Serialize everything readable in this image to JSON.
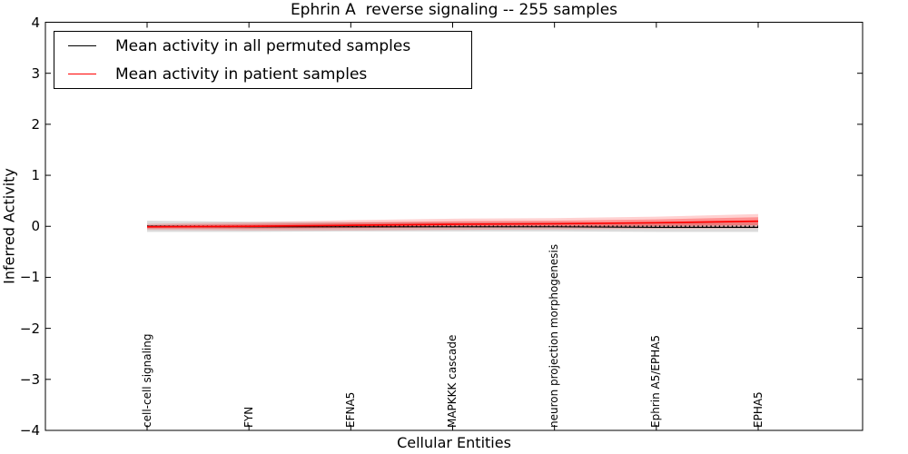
{
  "chart_data": {
    "type": "line",
    "title": "Ephrin A  reverse signaling -- 255 samples",
    "xlabel": "Cellular Entities",
    "ylabel": "Inferred Activity",
    "ylim": [
      -4,
      4
    ],
    "yticks": [
      "4",
      "3",
      "2",
      "1",
      "0",
      "−1",
      "−2",
      "−3",
      "−4"
    ],
    "categories": [
      "cell-cell signaling",
      "FYN",
      "EFNA5",
      "MAPKKK cascade",
      "neuron projection morphogenesis",
      "Ephrin A5/EPHA5",
      "EPHA5"
    ],
    "series": [
      {
        "name": "Mean activity in all permuted samples",
        "color": "#000000",
        "values": [
          0.0,
          -0.01,
          -0.01,
          -0.01,
          -0.01,
          -0.02,
          -0.02
        ],
        "band_halfwidth": [
          0.11,
          0.1,
          0.09,
          0.09,
          0.09,
          0.09,
          0.09
        ],
        "band_color": "#999999"
      },
      {
        "name": "Mean activity in patient samples",
        "color": "#ff0000",
        "values": [
          -0.01,
          0.0,
          0.02,
          0.04,
          0.05,
          0.07,
          0.1
        ],
        "band_halfwidth": [
          0.06,
          0.08,
          0.1,
          0.11,
          0.11,
          0.12,
          0.14
        ],
        "band_color": "#ff0000"
      }
    ],
    "zero_reference_line": {
      "value": 0,
      "style": "dotted",
      "color": "#000000"
    },
    "legend_position": "upper left",
    "grid": false,
    "axis_color": "#000000",
    "background_color": "#ffffff"
  }
}
